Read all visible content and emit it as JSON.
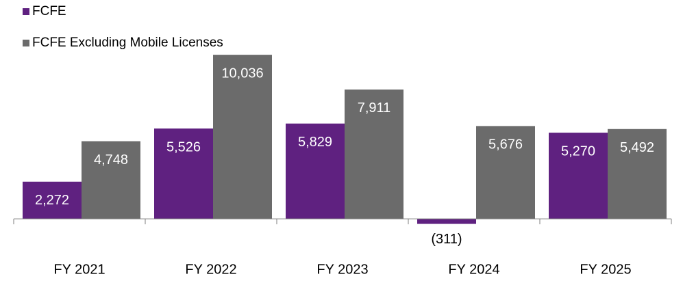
{
  "chart_data": {
    "type": "bar",
    "categories": [
      "FY 2021",
      "FY 2022",
      "FY 2023",
      "FY 2024",
      "FY 2025"
    ],
    "series": [
      {
        "name": "FCFE",
        "color": "#5f2180",
        "values": [
          2272,
          5526,
          5829,
          -311,
          5270
        ],
        "value_labels": [
          "2,272",
          "5,526",
          "5,829",
          "(311)",
          "5,270"
        ]
      },
      {
        "name": "FCFE Excluding Mobile Licenses",
        "color": "#6b6b6b",
        "values": [
          4748,
          10036,
          7911,
          5676,
          5492
        ],
        "value_labels": [
          "4,748",
          "10,036",
          "7,911",
          "5,676",
          "5,492"
        ]
      }
    ],
    "ylim": [
      -2000,
      11000
    ],
    "legend": "top-left"
  }
}
